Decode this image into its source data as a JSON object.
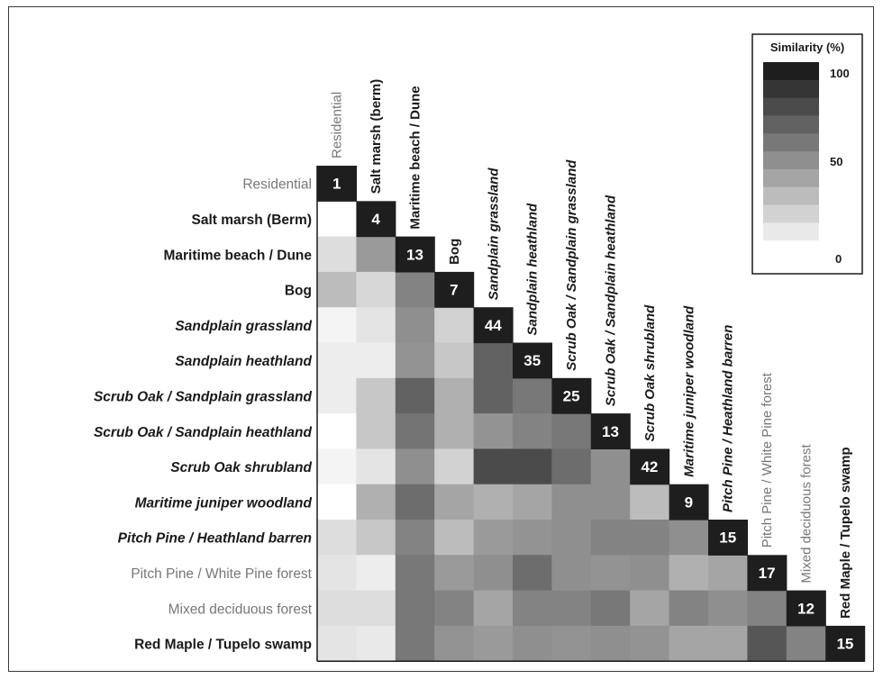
{
  "chart_data": {
    "type": "heatmap",
    "labels": [
      "Residential",
      "Salt marsh (Berm)",
      "Maritime beach / Dune",
      "Bog",
      "Sandplain grassland",
      "Sandplain heathland",
      "Scrub Oak / Sandplain grassland",
      "Scrub Oak / Sandplain heathland",
      "Scrub Oak shrubland",
      "Maritime juniper woodland",
      "Pitch Pine / Heathland barren",
      "Pitch Pine / White Pine forest",
      "Mixed deciduous forest",
      "Red Maple / Tupelo swamp"
    ],
    "column_labels": [
      "Residential",
      "Salt marsh (berm)",
      "Maritime beach / Dune",
      "Bog",
      "Sandplain grassland",
      "Sandplain heathland",
      "Scrub Oak / Sandplain grassland",
      "Scrub Oak / Sandplain heathland",
      "Scrub Oak shrubland",
      "Maritime juniper woodland",
      "Pitch Pine / Heathland barren",
      "Pitch Pine / White Pine forest",
      "Mixed deciduous forest",
      "Red Maple / Tupelo swamp"
    ],
    "label_style": [
      "plain",
      "bold",
      "bold",
      "bold",
      "bold-italic",
      "bold-italic",
      "bold-italic",
      "bold-italic",
      "bold-italic",
      "bold-italic",
      "bold-italic",
      "plain",
      "plain",
      "bold"
    ],
    "diagonal_values": [
      1,
      4,
      13,
      7,
      44,
      35,
      25,
      13,
      42,
      9,
      15,
      17,
      12,
      15
    ],
    "similarity_matrix": [
      [],
      [
        0
      ],
      [
        15,
        45
      ],
      [
        30,
        18,
        55
      ],
      [
        5,
        12,
        50,
        20
      ],
      [
        8,
        8,
        48,
        25,
        70
      ],
      [
        8,
        25,
        70,
        35,
        70,
        60
      ],
      [
        0,
        25,
        62,
        35,
        48,
        55,
        60
      ],
      [
        5,
        12,
        50,
        20,
        80,
        80,
        65,
        50
      ],
      [
        0,
        35,
        65,
        40,
        35,
        40,
        50,
        50,
        30
      ],
      [
        15,
        25,
        55,
        30,
        45,
        48,
        50,
        55,
        55,
        50
      ],
      [
        12,
        8,
        60,
        45,
        50,
        65,
        50,
        48,
        50,
        35,
        40
      ],
      [
        15,
        15,
        60,
        55,
        40,
        55,
        55,
        60,
        40,
        55,
        50,
        55
      ],
      [
        12,
        10,
        60,
        48,
        45,
        50,
        48,
        50,
        48,
        40,
        40,
        75,
        55
      ]
    ],
    "legend": {
      "title": "Similarity (%)",
      "tick_labels": [
        "100",
        "50",
        "0"
      ],
      "max": 100,
      "min": 0,
      "steps": 11
    },
    "colors": {
      "diagonal": "#1e1e1e",
      "plain_label": "#777777",
      "dark_label": "#1a1a1a"
    }
  }
}
